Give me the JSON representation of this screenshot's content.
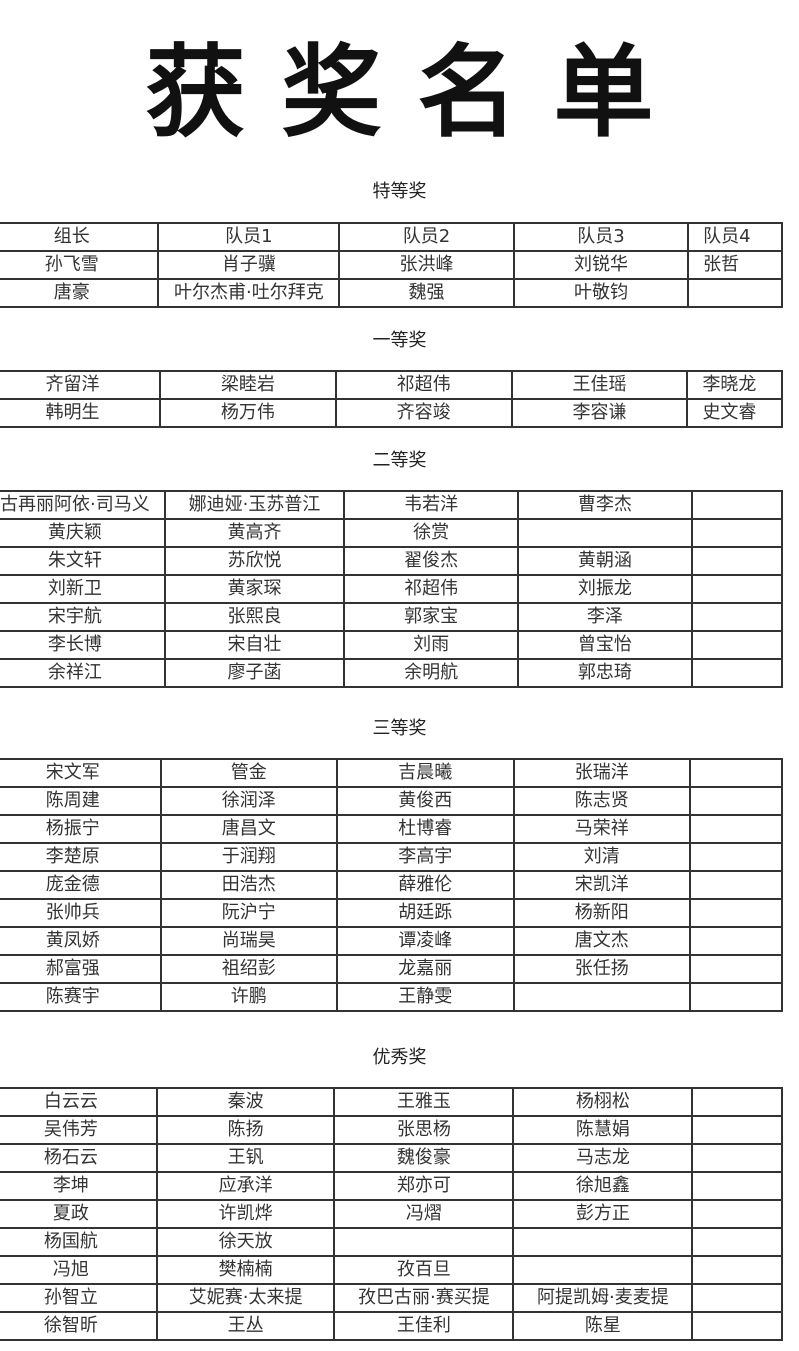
{
  "title": "获奖名单",
  "sections": [
    {
      "label": "特等奖",
      "rows": [
        [
          "组长",
          "队员1",
          "队员2",
          "队员3",
          "队员4"
        ],
        [
          "孙飞雪",
          "肖子骥",
          "张洪峰",
          "刘锐华",
          "张哲"
        ],
        [
          "唐豪",
          "叶尔杰甫·吐尔拜克",
          "魏强",
          "叶敬钧",
          ""
        ]
      ]
    },
    {
      "label": "一等奖",
      "rows": [
        [
          "齐留洋",
          "梁睦岩",
          "祁超伟",
          "王佳瑶",
          "李晓龙"
        ],
        [
          "韩明生",
          "杨万伟",
          "齐容竣",
          "李容谦",
          "史文睿"
        ]
      ]
    },
    {
      "label": "二等奖",
      "rows": [
        [
          "古再丽阿依·司马义",
          "娜迪娅·玉苏普江",
          "韦若洋",
          "曹李杰",
          ""
        ],
        [
          "黄庆颖",
          "黄高齐",
          "徐赏",
          "",
          ""
        ],
        [
          "朱文轩",
          "苏欣悦",
          "翟俊杰",
          "黄朝涵",
          ""
        ],
        [
          "刘新卫",
          "黄家琛",
          "祁超伟",
          "刘振龙",
          ""
        ],
        [
          "宋宇航",
          "张熙良",
          "郭家宝",
          "李泽",
          ""
        ],
        [
          "李长博",
          "宋自壮",
          "刘雨",
          "曾宝怡",
          ""
        ],
        [
          "余祥江",
          "廖子菡",
          "余明航",
          "郭忠琦",
          ""
        ]
      ]
    },
    {
      "label": "三等奖",
      "rows": [
        [
          "宋文军",
          "管金",
          "吉晨曦",
          "张瑞洋",
          ""
        ],
        [
          "陈周建",
          "徐润泽",
          "黄俊西",
          "陈志贤",
          ""
        ],
        [
          "杨振宁",
          "唐昌文",
          "杜博睿",
          "马荣祥",
          ""
        ],
        [
          "李楚原",
          "于润翔",
          "李高宇",
          "刘清",
          ""
        ],
        [
          "庞金德",
          "田浩杰",
          "薛雅伦",
          "宋凯洋",
          ""
        ],
        [
          "张帅兵",
          "阮沪宁",
          "胡廷跞",
          "杨新阳",
          ""
        ],
        [
          "黄凤娇",
          "尚瑞昊",
          "谭凌峰",
          "唐文杰",
          ""
        ],
        [
          "郝富强",
          "祖绍彭",
          "龙嘉丽",
          "张任扬",
          ""
        ],
        [
          "陈赛宇",
          "许鹏",
          "王静雯",
          "",
          ""
        ]
      ]
    },
    {
      "label": "优秀奖",
      "rows": [
        [
          "白云云",
          "秦波",
          "王雅玉",
          "杨栩松",
          ""
        ],
        [
          "吴伟芳",
          "陈扬",
          "张思杨",
          "陈慧娟",
          ""
        ],
        [
          "杨石云",
          "王钒",
          "魏俊豪",
          "马志龙",
          ""
        ],
        [
          "李坤",
          "应承洋",
          "郑亦可",
          "徐旭鑫",
          ""
        ],
        [
          "夏政",
          "许凯烨",
          "冯熠",
          "彭方正",
          ""
        ],
        [
          "杨国航",
          "徐天放",
          "",
          "",
          ""
        ],
        [
          "冯旭",
          "樊楠楠",
          "孜百旦",
          "",
          ""
        ],
        [
          "孙智立",
          "艾妮赛·太来提",
          "孜巴古丽·赛买提",
          "阿提凯姆·麦麦提",
          ""
        ],
        [
          "徐智昕",
          "王丛",
          "王佳利",
          "陈星",
          ""
        ]
      ]
    }
  ]
}
